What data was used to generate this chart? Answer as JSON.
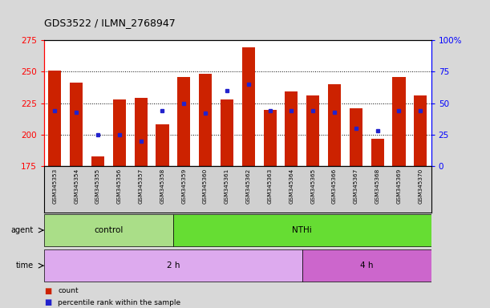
{
  "title": "GDS3522 / ILMN_2768947",
  "samples": [
    "GSM345353",
    "GSM345354",
    "GSM345355",
    "GSM345356",
    "GSM345357",
    "GSM345358",
    "GSM345359",
    "GSM345360",
    "GSM345361",
    "GSM345362",
    "GSM345363",
    "GSM345364",
    "GSM345365",
    "GSM345366",
    "GSM345367",
    "GSM345368",
    "GSM345369",
    "GSM345370"
  ],
  "counts": [
    251,
    241,
    183,
    228,
    229,
    208,
    246,
    248,
    228,
    269,
    220,
    234,
    231,
    240,
    221,
    197,
    246,
    231
  ],
  "percentile_ranks": [
    44,
    43,
    25,
    25,
    20,
    44,
    50,
    42,
    60,
    65,
    44,
    44,
    44,
    43,
    30,
    28,
    44,
    44
  ],
  "ymin": 175,
  "ymax": 275,
  "yticks": [
    175,
    200,
    225,
    250,
    275
  ],
  "right_yticks": [
    0,
    25,
    50,
    75,
    100
  ],
  "bar_color": "#cc2200",
  "dot_color": "#2222cc",
  "bg_color": "#d8d8d8",
  "plot_bg": "#ffffff",
  "tick_area_bg": "#d0d0d0",
  "agent_groups": [
    {
      "label": "control",
      "start": 0,
      "end": 6,
      "color": "#aade88"
    },
    {
      "label": "NTHi",
      "start": 6,
      "end": 18,
      "color": "#66dd33"
    }
  ],
  "time_groups": [
    {
      "label": "2 h",
      "start": 0,
      "end": 12,
      "color": "#ddaaee"
    },
    {
      "label": "4 h",
      "start": 12,
      "end": 18,
      "color": "#cc66cc"
    }
  ],
  "legend_items": [
    {
      "label": "count",
      "color": "#cc2200"
    },
    {
      "label": "percentile rank within the sample",
      "color": "#2222cc"
    }
  ]
}
